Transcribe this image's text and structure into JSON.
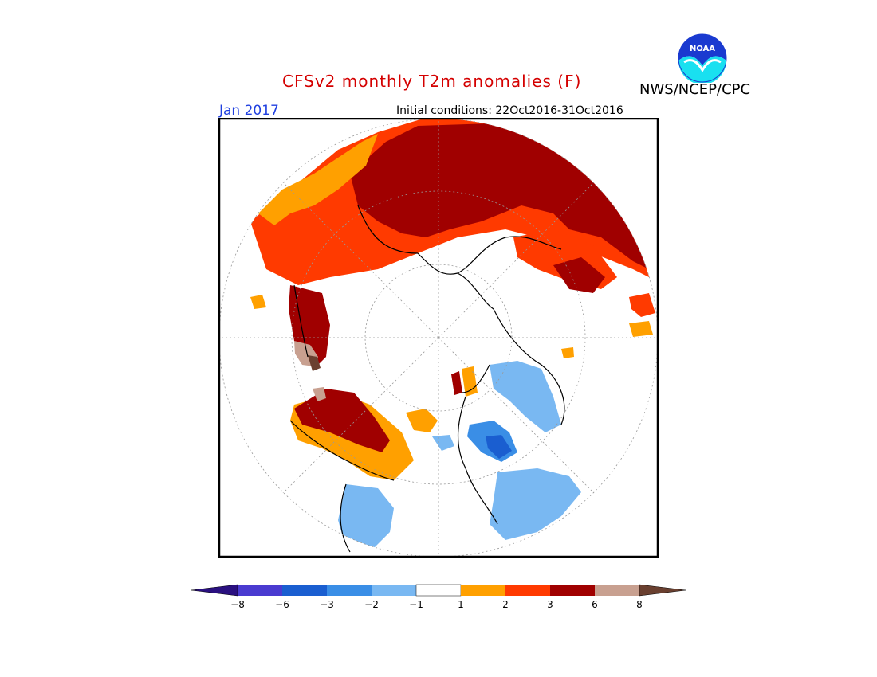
{
  "header": {
    "title": "CFSv2 monthly T2m anomalies (F)",
    "month": "Jan 2017",
    "initial_conditions": "Initial conditions: 22Oct2016-31Oct2016",
    "organization": "NWS/NCEP/CPC",
    "logo_text": "NOAA"
  },
  "colors": {
    "title": "#d40000",
    "month": "#2040e0",
    "below_8": "#2a1080",
    "neg_8_to_6": "#4a3bd0",
    "neg_6_to_3": "#1a5ed0",
    "neg_3_to_2": "#3a8ee6",
    "neg_2_to_1": "#79b8f2",
    "neutral": "#ffffff",
    "pos_1_to_2": "#ffa000",
    "pos_2_to_3": "#ff3a00",
    "pos_3_to_6": "#a00000",
    "pos_6_to_8": "#c8a090",
    "above_8": "#6a4030"
  },
  "colorbar": {
    "ticks": [
      "−8",
      "−6",
      "−3",
      "−2",
      "−1",
      "1",
      "2",
      "3",
      "6",
      "8"
    ]
  }
}
